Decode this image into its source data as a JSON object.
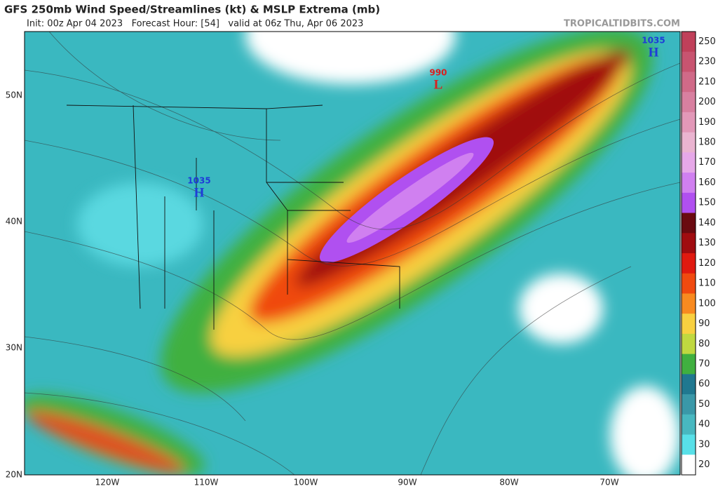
{
  "header": {
    "title": "GFS 250mb Wind Speed/Streamlines (kt) & MSLP Extrema (mb)",
    "subtitle": "Init: 00z Apr 04 2023   Forecast Hour: [54]   valid at 06z Thu, Apr 06 2023",
    "source": "TROPICALTIDBITS.COM"
  },
  "colorbar": {
    "labels": [
      250,
      230,
      210,
      200,
      190,
      180,
      170,
      160,
      150,
      140,
      130,
      120,
      110,
      100,
      90,
      80,
      70,
      60,
      50,
      40,
      30,
      20
    ],
    "colors": [
      "#c0405a",
      "#c85470",
      "#d06a88",
      "#d880a0",
      "#e298b8",
      "#eab4d0",
      "#e6a8e8",
      "#d080f0",
      "#b050f0",
      "#6a0a10",
      "#a00c10",
      "#e01a10",
      "#f04a10",
      "#f88a20",
      "#f8d040",
      "#c0d840",
      "#40b040",
      "#207890",
      "#3a98a8",
      "#48b8c0",
      "#58e0e8",
      "#ffffff"
    ]
  },
  "latitudes": [
    "50N",
    "40N",
    "30N",
    "20N"
  ],
  "longitudes": [
    "120W",
    "110W",
    "100W",
    "90W",
    "80W",
    "70W"
  ],
  "pressure_centers": [
    {
      "value": 1035,
      "letter": "H"
    },
    {
      "value": 990,
      "letter": "L"
    },
    {
      "value": 1035,
      "letter": "H"
    }
  ]
}
